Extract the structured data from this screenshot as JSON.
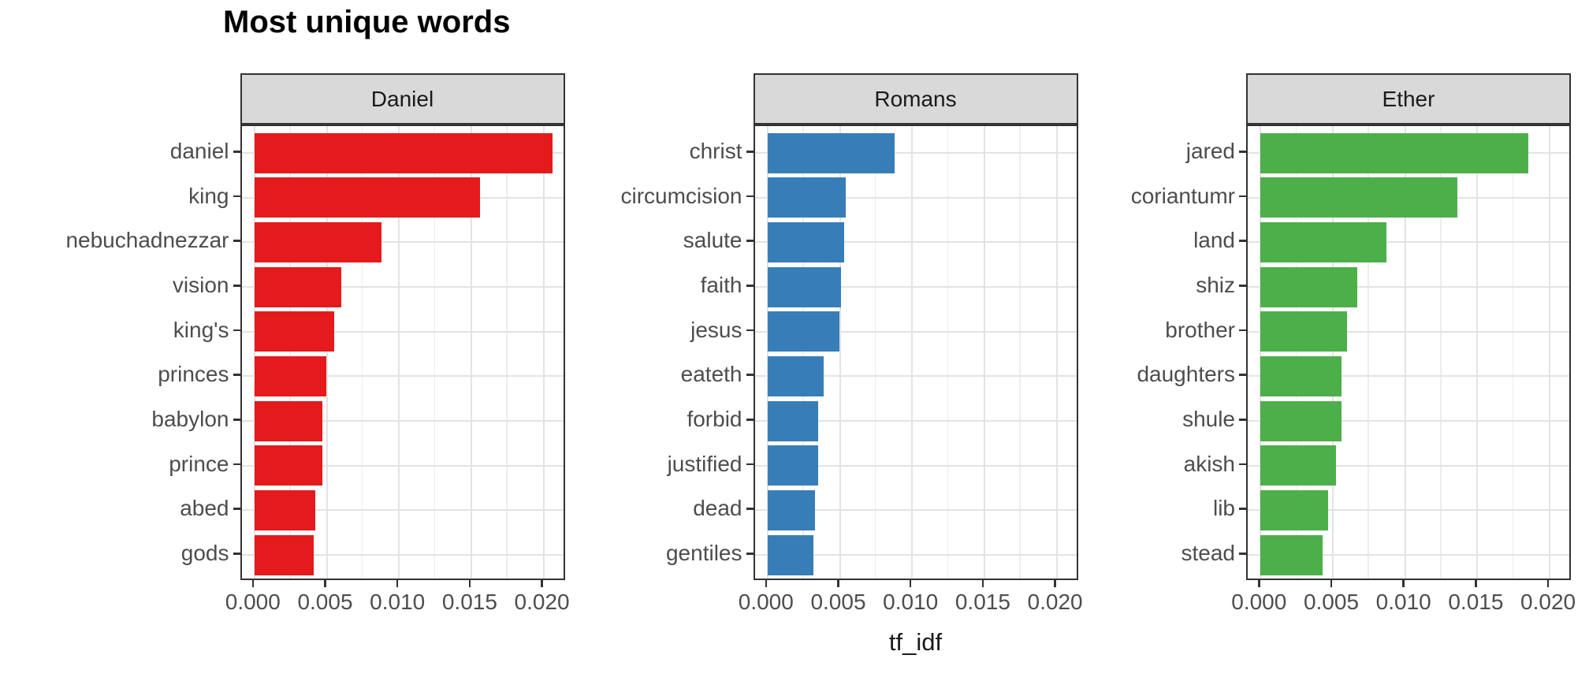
{
  "title": "Most unique words",
  "x_axis": {
    "label": "tf_idf",
    "tick_labels": [
      "0.000",
      "0.005",
      "0.010",
      "0.015",
      "0.020"
    ],
    "tick_values": [
      0,
      0.005,
      0.01,
      0.015,
      0.02
    ],
    "minor_tick_values": [
      0.0025,
      0.0075,
      0.0125,
      0.0175
    ]
  },
  "style": {
    "facet_colors": {
      "Daniel": "#E41A1C",
      "Romans": "#377EB8",
      "Ether": "#4DAF4A"
    },
    "strip_background": "#D9D9D9",
    "panel_border": "#333333",
    "grid_major": "#E3E3E3",
    "grid_minor": "#EDEDED",
    "axis_text": "#4D4D4D"
  },
  "chart_data": {
    "type": "bar",
    "orientation": "horizontal",
    "title": "Most unique words",
    "xlabel": "tf_idf",
    "ylabel": "",
    "xlim": [
      0,
      0.0215
    ],
    "grid": true,
    "legend": "none",
    "facets": [
      {
        "name": "Daniel",
        "color": "#E41A1C",
        "categories": [
          "daniel",
          "king",
          "nebuchadnezzar",
          "vision",
          "king's",
          "princes",
          "babylon",
          "prince",
          "abed",
          "gods"
        ],
        "values": [
          0.0206,
          0.0156,
          0.0088,
          0.006,
          0.0055,
          0.005,
          0.0047,
          0.0047,
          0.0042,
          0.0041
        ]
      },
      {
        "name": "Romans",
        "color": "#377EB8",
        "categories": [
          "christ",
          "circumcision",
          "salute",
          "faith",
          "jesus",
          "eateth",
          "forbid",
          "justified",
          "dead",
          "gentiles"
        ],
        "values": [
          0.0088,
          0.0054,
          0.0053,
          0.0051,
          0.005,
          0.0039,
          0.0035,
          0.0035,
          0.0033,
          0.0032
        ]
      },
      {
        "name": "Ether",
        "color": "#4DAF4A",
        "categories": [
          "jared",
          "coriantumr",
          "land",
          "shiz",
          "brother",
          "daughters",
          "shule",
          "akish",
          "lib",
          "stead"
        ],
        "values": [
          0.0185,
          0.0136,
          0.0087,
          0.0067,
          0.006,
          0.0056,
          0.0056,
          0.0052,
          0.0047,
          0.0043
        ]
      }
    ]
  }
}
